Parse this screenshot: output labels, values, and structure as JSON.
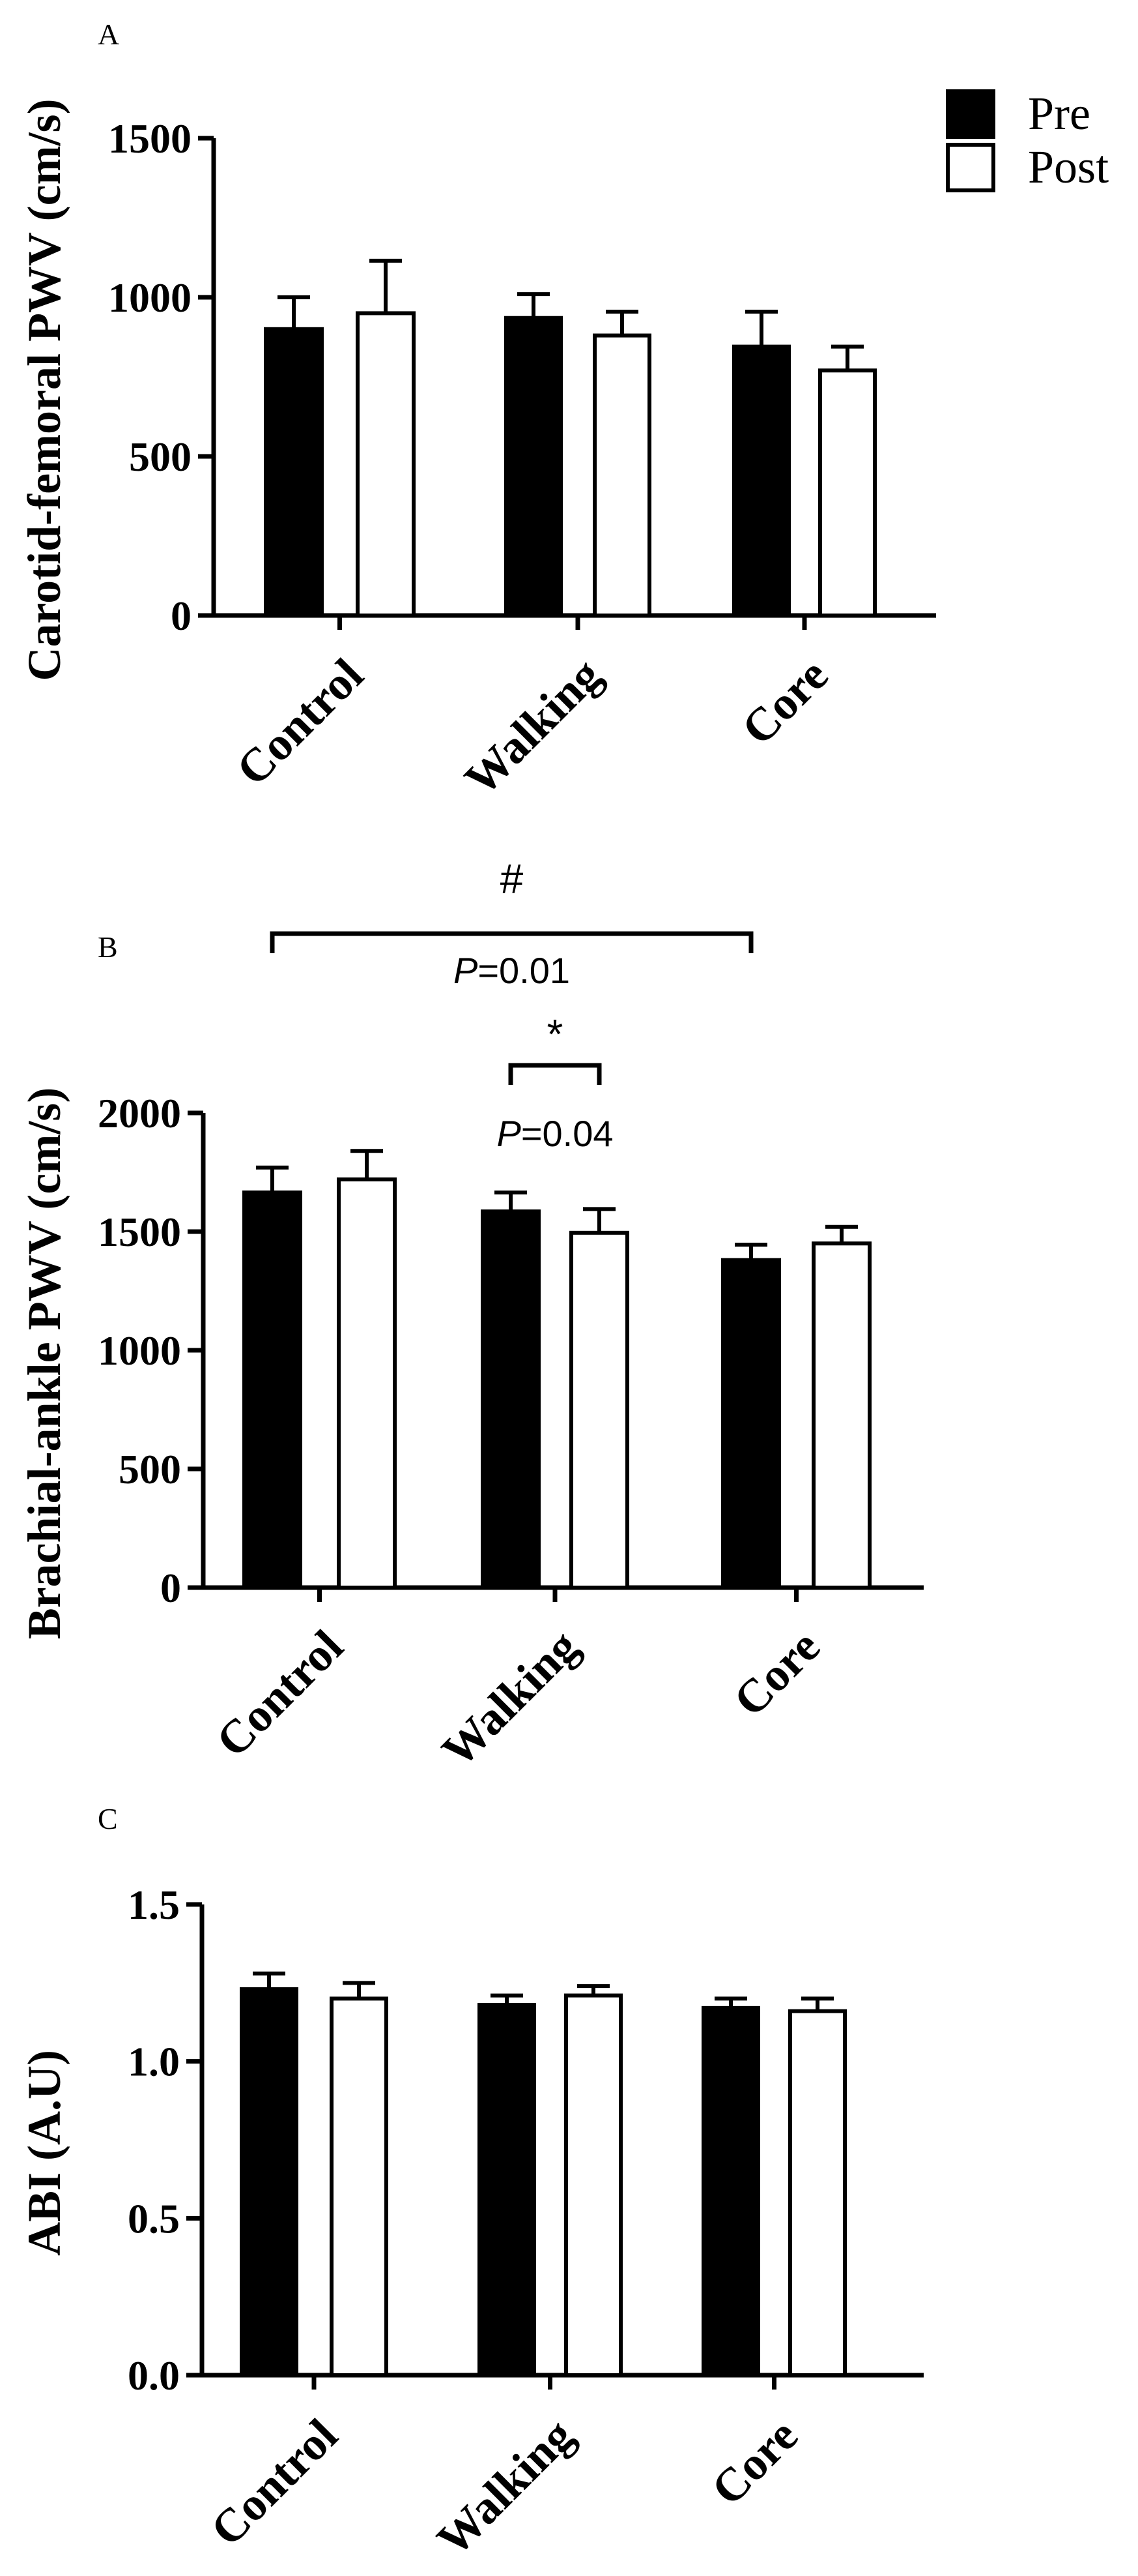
{
  "legend": {
    "items": [
      {
        "label": "Pre",
        "fill": "#000000"
      },
      {
        "label": "Post",
        "fill": "#ffffff"
      }
    ]
  },
  "chart_data": [
    {
      "panel": "A",
      "type": "bar",
      "ylabel": "Carotid-femoral PWV (cm/s)",
      "ylim": [
        0,
        1500
      ],
      "yticks": [
        0,
        500,
        1000,
        1500
      ],
      "categories": [
        "Control",
        "Walking",
        "Core"
      ],
      "series": [
        {
          "name": "Pre",
          "values": [
            900,
            935,
            845
          ],
          "errors": [
            100,
            75,
            110
          ]
        },
        {
          "name": "Post",
          "values": [
            950,
            880,
            770
          ],
          "errors": [
            165,
            75,
            75
          ]
        }
      ],
      "annotations": []
    },
    {
      "panel": "B",
      "type": "bar",
      "ylabel": "Brachial-ankle PWV (cm/s)",
      "ylim": [
        0,
        2000
      ],
      "yticks": [
        0,
        500,
        1000,
        1500,
        2000
      ],
      "categories": [
        "Control",
        "Walking",
        "Core"
      ],
      "series": [
        {
          "name": "Pre",
          "values": [
            1665,
            1585,
            1380
          ],
          "errors": [
            105,
            80,
            65
          ]
        },
        {
          "name": "Post",
          "values": [
            1720,
            1495,
            1450
          ],
          "errors": [
            120,
            100,
            70
          ]
        }
      ],
      "annotations": [
        {
          "symbol": "#",
          "text_italic": "P",
          "text_value": "=0.01",
          "from": [
            "Control",
            "Pre"
          ],
          "to": [
            "Core",
            "Pre"
          ]
        },
        {
          "symbol": "*",
          "text_italic": "P",
          "text_value": "=0.04",
          "from": [
            "Walking",
            "Pre"
          ],
          "to": [
            "Walking",
            "Post"
          ]
        }
      ]
    },
    {
      "panel": "C",
      "type": "bar",
      "ylabel": "ABI (A.U)",
      "ylim": [
        0,
        1.5
      ],
      "yticks": [
        0.0,
        0.5,
        1.0,
        1.5
      ],
      "tick_decimals": 1,
      "categories": [
        "Control",
        "Walking",
        "Core"
      ],
      "series": [
        {
          "name": "Pre",
          "values": [
            1.23,
            1.18,
            1.17
          ],
          "errors": [
            0.05,
            0.03,
            0.03
          ]
        },
        {
          "name": "Post",
          "values": [
            1.2,
            1.21,
            1.16
          ],
          "errors": [
            0.05,
            0.03,
            0.04
          ]
        }
      ],
      "annotations": []
    }
  ]
}
